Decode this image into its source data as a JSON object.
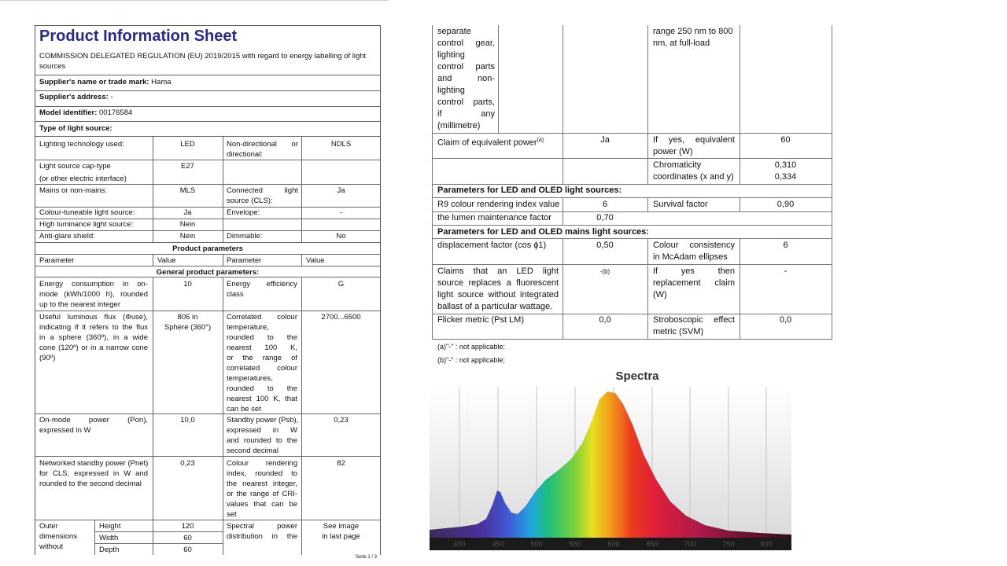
{
  "sheet": {
    "title": "Product Information Sheet",
    "regulation": "COMMISSION DELEGATED REGULATION (EU) 2019/2015 with regard to energy labelling of light sources",
    "supplier_label": "Supplier's name or trade mark:",
    "supplier_value": "Hama",
    "address_label": "Supplier's address:",
    "address_value": "-",
    "model_label": "Model identifier:",
    "model_value": "00176584",
    "type_label": "Type of light source:",
    "rows": {
      "tech_label": "Lighting technology used:",
      "tech_value": "LED",
      "nondir_label": [
        "Non-directional",
        "or",
        "directional:"
      ],
      "nondir_value": "NDLS",
      "cap_label": "Light source cap-type",
      "cap_label2": "(or other electric interface)",
      "cap_value": "E27",
      "mains_label": "Mains or non-mains:",
      "mains_value": "MLS",
      "cls_label": [
        "Connected",
        "light",
        "source (CLS):"
      ],
      "cls_value": "Ja",
      "tune_label": "Colour-tuneable light source:",
      "tune_value": "Ja",
      "env_label": "Envelope:",
      "env_value": "-",
      "hlum_label": "High luminance light source:",
      "hlum_value": "Nein",
      "glare_label": "Anti-glare shield:",
      "glare_value": "Nein",
      "dim_label": "Dimmable:",
      "dim_value": "No"
    },
    "product_params": "Product parameters",
    "col_parameter": "Parameter",
    "col_value": "Value",
    "general_params": "General product parameters:",
    "energy": {
      "label": [
        "Energy consumption in on-",
        "mode (kWh/1000 h), rounded",
        "up to the nearest integer"
      ],
      "value": "10",
      "class_label": [
        "Energy efficiency",
        "class"
      ],
      "class_value": "G"
    },
    "flux": {
      "label": [
        "Useful luminous flux (Φuse),",
        "indicating if it refers to the flux",
        "in a sphere (360º), in a wide",
        "cone (120º) or in a narrow cone",
        "(90º)"
      ],
      "value": [
        "806 in",
        "Sphere (360°)"
      ],
      "cct_label": [
        "Correlated colour",
        "temperature,",
        "rounded to the",
        "nearest 100 K,",
        "or the range of",
        "correlated colour",
        "temperatures,",
        "rounded to the",
        "nearest 100 K, that",
        "can be set"
      ],
      "cct_value": "2700...6500"
    },
    "onmode": {
      "label": [
        "On-mode power (Pon),",
        "expressed in W"
      ],
      "value": "10,0",
      "sb_label": [
        "Standby power (Psb),",
        "expressed in W",
        "and rounded to the",
        "second decimal"
      ],
      "sb_value": "0,23"
    },
    "netsb": {
      "label": [
        "Networked standby power (Pnet)",
        "for CLS, expressed in W and",
        "rounded to the second decimal"
      ],
      "value": "0,23",
      "cri_label": [
        "Colour rendering",
        "index, rounded to",
        "the nearest integer,",
        "or the range of CRI-",
        "values that can be",
        "set"
      ],
      "cri_value": "82"
    },
    "dims": {
      "label": [
        "Outer",
        "dimensions",
        "without"
      ],
      "height_label": "Height",
      "height_value": "120",
      "width_label": "Width",
      "width_value": "60",
      "depth_label": "Depth",
      "depth_value": "60",
      "spd_label": [
        "Spectral power",
        "distribution in the"
      ],
      "spd_value": [
        "See image",
        "in last page"
      ]
    },
    "footer": "Seite 1 / 3"
  },
  "right": {
    "top_left": [
      "separate",
      "control gear,",
      "lighting",
      "control parts",
      "and non-",
      "lighting",
      "control parts,",
      "if any",
      "(millimetre)"
    ],
    "top_right": [
      "range 250 nm to 800",
      "nm, at full-load"
    ],
    "equiv_label": "Claim of equivalent power",
    "equiv_sup": "(a)",
    "equiv_value": "Ja",
    "equiv_w_label": [
      "If yes, equivalent",
      "power (W)"
    ],
    "equiv_w_value": "60",
    "chroma_label": [
      "Chromaticity",
      "coordinates (x and y)"
    ],
    "chroma_values": [
      "0,310",
      "0,334"
    ],
    "led_header": "Parameters for LED and OLED light sources:",
    "r9_label": "R9 colour rendering index value",
    "r9_value": "6",
    "survival_label": "Survival factor",
    "survival_value": "0,90",
    "lumen_label": "the lumen maintenance factor",
    "lumen_value": "0,70",
    "mains_header": "Parameters for LED and OLED mains light sources:",
    "disp_label": "displacement factor (cos ϕ1)",
    "disp_value": "0,50",
    "mcadam_label": [
      "Colour consistency",
      "in McAdam ellipses"
    ],
    "mcadam_value": "6",
    "claims_label": [
      "Claims that an LED light",
      "source replaces a fluorescent",
      "light source without integrated",
      "ballast of a particular wattage."
    ],
    "claims_value": "-(b)",
    "claims_w_label": [
      "If yes then",
      "replacement claim",
      "(W)"
    ],
    "claims_w_value": "-",
    "flicker_label": "Flicker metric (Pst LM)",
    "flicker_value": "0,0",
    "strobo_label": [
      "Stroboscopic effect",
      "metric (SVM)"
    ],
    "strobo_value": "0,0",
    "fn_a": "(a)\"-\" : not applicable;",
    "fn_b": "(b)\"-\" : not applicable;"
  },
  "spectra": {
    "title": "Spectra",
    "tick_labels": [
      "400",
      "450",
      "500",
      "550",
      "600",
      "650",
      "700",
      "750",
      "800"
    ]
  },
  "colors": {
    "title": "#2a2a8a",
    "rule": "#666666"
  }
}
